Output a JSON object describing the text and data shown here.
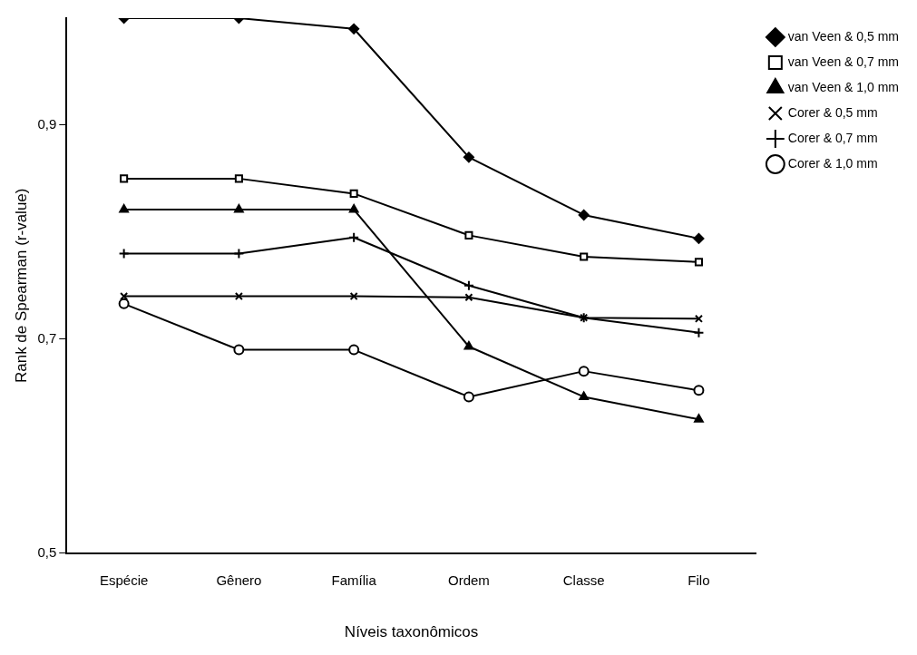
{
  "chart_data": {
    "type": "line",
    "xlabel": "Níveis taxonômicos",
    "ylabel": "Rank de Spearman (r-value)",
    "categories": [
      "Espécie",
      "Gênero",
      "Família",
      "Ordem",
      "Classe",
      "Filo"
    ],
    "ylim": [
      0.5,
      1.0
    ],
    "yticks": [
      {
        "value": 0.5,
        "label": "0,5"
      },
      {
        "value": 0.7,
        "label": "0,7"
      },
      {
        "value": 0.9,
        "label": "0,9"
      }
    ],
    "grid": false,
    "legend": "top right",
    "line_style": "solid",
    "series": [
      {
        "name": "van Veen & 0,5 mm",
        "color": "#000000",
        "marker": "diamond",
        "values": [
          1.0,
          1.0,
          0.99,
          0.87,
          0.816,
          0.794
        ]
      },
      {
        "name": "van Veen & 0,7 mm",
        "color": "#000000",
        "marker": "square",
        "values": [
          0.85,
          0.85,
          0.836,
          0.797,
          0.777,
          0.772
        ]
      },
      {
        "name": "van Veen & 1,0 mm",
        "color": "#000000",
        "marker": "triangle",
        "values": [
          0.821,
          0.821,
          0.821,
          0.693,
          0.646,
          0.625
        ]
      },
      {
        "name": "Corer & 0,5 mm",
        "color": "#000000",
        "marker": "cross",
        "values": [
          0.74,
          0.74,
          0.74,
          0.739,
          0.72,
          0.719
        ]
      },
      {
        "name": "Corer & 0,7 mm",
        "color": "#000000",
        "marker": "plus",
        "values": [
          0.78,
          0.78,
          0.795,
          0.75,
          0.72,
          0.706
        ]
      },
      {
        "name": "Corer & 1,0 mm",
        "color": "#000000",
        "marker": "circle",
        "values": [
          0.733,
          0.69,
          0.69,
          0.646,
          0.67,
          0.652
        ]
      }
    ]
  }
}
